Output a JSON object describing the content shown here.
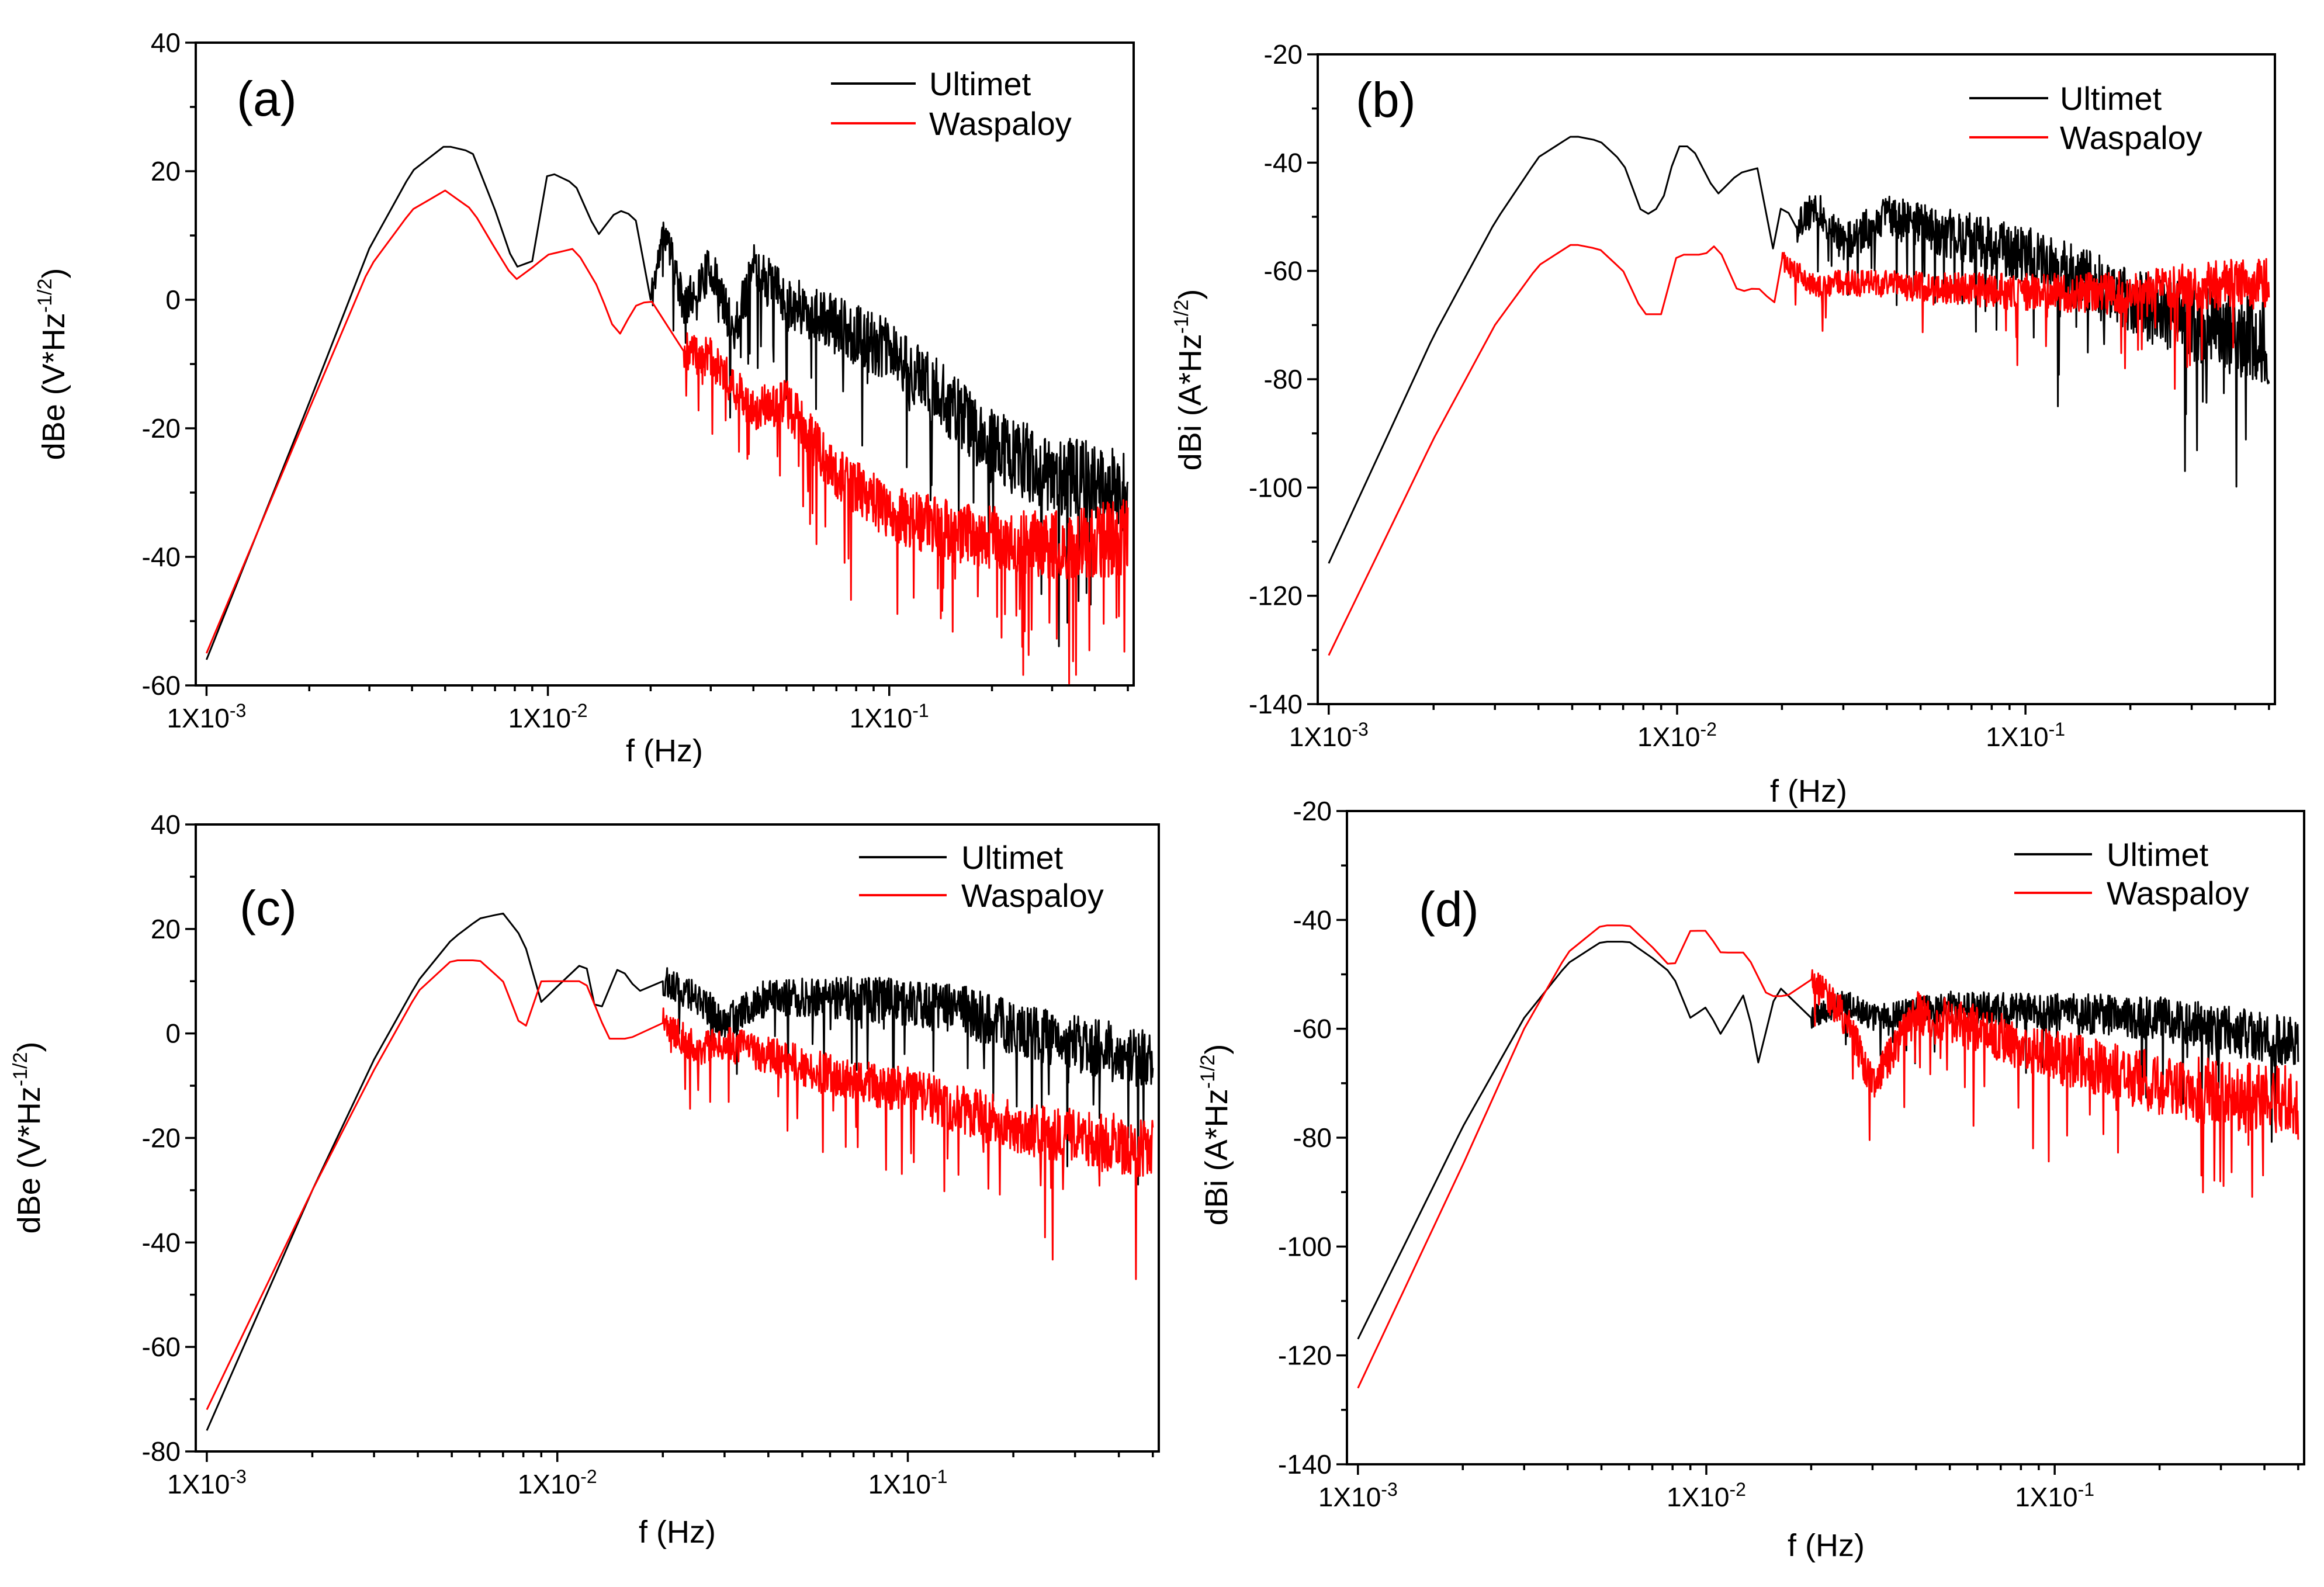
{
  "colors": {
    "ultimet": "#000000",
    "waspaloy": "#ff0000"
  },
  "chart_data": [
    {
      "type": "line",
      "panel": "(a)",
      "xlabel": "f (Hz)",
      "ylabel": "dBe (V*Hz^-1/2)",
      "xscale": "log",
      "xlim": [
        0.00093,
        0.52
      ],
      "ylim": [
        -60,
        40
      ],
      "yticks": [
        40,
        20,
        0,
        -20,
        -40,
        -60
      ],
      "xticks": [
        {
          "value": 0.001,
          "label": "1X10-3",
          "base": "1X10",
          "exp": "-3"
        },
        {
          "value": 0.01,
          "label": "1X10-2",
          "base": "1X10",
          "exp": "-2"
        },
        {
          "value": 0.1,
          "label": "1X10-1",
          "base": "1X10",
          "exp": "-1"
        }
      ],
      "legend_position": "top-right",
      "series": [
        {
          "name": "Ultimet",
          "color": "#000000",
          "x": [
            0.001,
            0.002,
            0.003,
            0.004,
            0.005,
            0.006,
            0.007,
            0.008,
            0.009,
            0.01,
            0.012,
            0.014,
            0.016,
            0.018,
            0.02,
            0.022,
            0.025,
            0.03,
            0.035,
            0.04,
            0.05,
            0.07,
            0.1,
            0.15,
            0.2,
            0.3,
            0.5
          ],
          "y": [
            -56,
            -16,
            8,
            20,
            24,
            23,
            14,
            5,
            6,
            20,
            18,
            10,
            14,
            13,
            0,
            11,
            -1,
            5,
            -5,
            5,
            0,
            -4,
            -8,
            -16,
            -23,
            -27,
            -30
          ],
          "noise_from": 0.02,
          "noise_amp": [
            3,
            7
          ],
          "noise_dips": 12,
          "noise_seed": 11
        },
        {
          "name": "Waspaloy",
          "color": "#ff0000",
          "x": [
            0.001,
            0.002,
            0.003,
            0.004,
            0.005,
            0.006,
            0.007,
            0.008,
            0.009,
            0.01,
            0.012,
            0.014,
            0.016,
            0.018,
            0.02,
            0.025,
            0.03,
            0.04,
            0.05,
            0.07,
            0.1,
            0.15,
            0.2,
            0.3,
            0.5
          ],
          "y": [
            -55,
            -17,
            5,
            14,
            17,
            14,
            8,
            3,
            5,
            7,
            8,
            2,
            -6,
            -1,
            0,
            -8,
            -9,
            -17,
            -16,
            -27,
            -33,
            -36,
            -37,
            -38,
            -37
          ],
          "noise_from": 0.025,
          "noise_amp": [
            3,
            6
          ],
          "noise_dips": 14,
          "noise_seed": 23
        }
      ]
    },
    {
      "type": "line",
      "panel": "(b)",
      "xlabel": "f (Hz)",
      "ylabel": "dBi (A*Hz^-1/2)",
      "xscale": "log",
      "xlim": [
        0.00093,
        0.52
      ],
      "ylim": [
        -140,
        -20
      ],
      "yticks": [
        -20,
        -40,
        -60,
        -80,
        -100,
        -120,
        -140
      ],
      "xticks": [
        {
          "value": 0.001,
          "label": "1X10-3",
          "base": "1X10",
          "exp": "-3"
        },
        {
          "value": 0.01,
          "label": "1X10-2",
          "base": "1X10",
          "exp": "-2"
        },
        {
          "value": 0.1,
          "label": "1X10-1",
          "base": "1X10",
          "exp": "-1"
        }
      ],
      "legend_position": "top-right",
      "series": [
        {
          "name": "Ultimet",
          "color": "#000000",
          "x": [
            0.001,
            0.002,
            0.003,
            0.004,
            0.005,
            0.006,
            0.007,
            0.008,
            0.009,
            0.01,
            0.011,
            0.013,
            0.015,
            0.017,
            0.019,
            0.02,
            0.022,
            0.025,
            0.03,
            0.04,
            0.06,
            0.1,
            0.15,
            0.2,
            0.3,
            0.5
          ],
          "y": [
            -114,
            -72,
            -51,
            -39,
            -35,
            -36,
            -40,
            -50,
            -48,
            -37,
            -37,
            -46,
            -42,
            -41,
            -57,
            -47,
            -52,
            -48,
            -55,
            -50,
            -53,
            -57,
            -62,
            -65,
            -70,
            -73
          ],
          "noise_from": 0.022,
          "noise_amp": [
            3,
            8
          ],
          "noise_dips": 12,
          "noise_seed": 37
        },
        {
          "name": "Waspaloy",
          "color": "#ff0000",
          "x": [
            0.001,
            0.002,
            0.003,
            0.004,
            0.005,
            0.006,
            0.007,
            0.008,
            0.009,
            0.01,
            0.012,
            0.013,
            0.015,
            0.017,
            0.019,
            0.02,
            0.025,
            0.03,
            0.05,
            0.1,
            0.2,
            0.3,
            0.5
          ],
          "y": [
            -131,
            -91,
            -70,
            -59,
            -55,
            -56,
            -60,
            -68,
            -68,
            -57,
            -57,
            -55,
            -64,
            -63,
            -66,
            -58,
            -63,
            -62,
            -63,
            -64,
            -64,
            -63,
            -62
          ],
          "noise_from": 0.02,
          "noise_amp": [
            2,
            5
          ],
          "noise_dips": 6,
          "noise_seed": 41
        }
      ]
    },
    {
      "type": "line",
      "panel": "(c)",
      "xlabel": "f (Hz)",
      "ylabel": "dBe (V*Hz^-1/2)",
      "xscale": "log",
      "xlim": [
        0.00093,
        0.52
      ],
      "ylim": [
        -80,
        40
      ],
      "yticks": [
        40,
        20,
        0,
        -20,
        -40,
        -60,
        -80
      ],
      "xticks": [
        {
          "value": 0.001,
          "label": "1X10-3",
          "base": "1X10",
          "exp": "-3"
        },
        {
          "value": 0.01,
          "label": "1X10-2",
          "base": "1X10",
          "exp": "-2"
        },
        {
          "value": 0.1,
          "label": "1X10-1",
          "base": "1X10",
          "exp": "-1"
        }
      ],
      "legend_position": "top-right",
      "series": [
        {
          "name": "Ultimet",
          "color": "#000000",
          "x": [
            0.001,
            0.002,
            0.003,
            0.004,
            0.005,
            0.006,
            0.007,
            0.008,
            0.009,
            0.01,
            0.012,
            0.013,
            0.015,
            0.017,
            0.02,
            0.025,
            0.03,
            0.04,
            0.06,
            0.1,
            0.15,
            0.2,
            0.3,
            0.5
          ],
          "y": [
            -76,
            -30,
            -5,
            10,
            18,
            22,
            23,
            18,
            6,
            9,
            14,
            3,
            13,
            8,
            10,
            7,
            2,
            7,
            7,
            6,
            4,
            1,
            -2,
            -5
          ],
          "noise_from": 0.02,
          "noise_amp": [
            3,
            6
          ],
          "noise_dips": 10,
          "noise_seed": 53
        },
        {
          "name": "Waspaloy",
          "color": "#ff0000",
          "x": [
            0.001,
            0.002,
            0.003,
            0.004,
            0.005,
            0.006,
            0.007,
            0.008,
            0.009,
            0.01,
            0.012,
            0.014,
            0.016,
            0.02,
            0.025,
            0.03,
            0.04,
            0.06,
            0.1,
            0.15,
            0.2,
            0.3,
            0.5
          ],
          "y": [
            -72,
            -30,
            -7,
            8,
            14,
            14,
            10,
            0,
            10,
            10,
            10,
            -1,
            -1,
            2,
            -3,
            -2,
            -4,
            -8,
            -11,
            -15,
            -18,
            -20,
            -22
          ],
          "noise_from": 0.02,
          "noise_amp": [
            3,
            6
          ],
          "noise_dips": 12,
          "noise_seed": 67
        }
      ]
    },
    {
      "type": "line",
      "panel": "(d)",
      "xlabel": "f (Hz)",
      "ylabel": "dBi (A*Hz^-1/2)",
      "xscale": "log",
      "xlim": [
        0.00093,
        0.52
      ],
      "ylim": [
        -140,
        -20
      ],
      "yticks": [
        -20,
        -40,
        -60,
        -80,
        -100,
        -120,
        -140
      ],
      "xticks": [
        {
          "value": 0.001,
          "label": "1X10-3",
          "base": "1X10",
          "exp": "-3"
        },
        {
          "value": 0.01,
          "label": "1X10-2",
          "base": "1X10",
          "exp": "-2"
        },
        {
          "value": 0.1,
          "label": "1X10-1",
          "base": "1X10",
          "exp": "-1"
        }
      ],
      "legend_position": "top-right",
      "series": [
        {
          "name": "Ultimet",
          "color": "#000000",
          "x": [
            0.001,
            0.002,
            0.003,
            0.004,
            0.005,
            0.006,
            0.007,
            0.008,
            0.009,
            0.01,
            0.011,
            0.013,
            0.014,
            0.016,
            0.02,
            0.025,
            0.03,
            0.05,
            0.1,
            0.2,
            0.3,
            0.5
          ],
          "y": [
            -117,
            -78,
            -58,
            -48,
            -44,
            -44,
            -47,
            -50,
            -58,
            -56,
            -61,
            -53,
            -67,
            -52,
            -58,
            -55,
            -58,
            -56,
            -57,
            -58,
            -60,
            -63
          ],
          "noise_from": 0.02,
          "noise_amp": [
            2,
            5
          ],
          "noise_dips": 7,
          "noise_seed": 79
        },
        {
          "name": "Waspaloy",
          "color": "#ff0000",
          "x": [
            0.001,
            0.002,
            0.003,
            0.004,
            0.005,
            0.006,
            0.007,
            0.008,
            0.009,
            0.01,
            0.011,
            0.013,
            0.015,
            0.017,
            0.02,
            0.025,
            0.03,
            0.04,
            0.06,
            0.1,
            0.2,
            0.3,
            0.5
          ],
          "y": [
            -126,
            -85,
            -60,
            -46,
            -41,
            -41,
            -45,
            -49,
            -42,
            -42,
            -46,
            -46,
            -54,
            -54,
            -51,
            -58,
            -70,
            -57,
            -60,
            -65,
            -70,
            -72,
            -74
          ],
          "noise_from": 0.02,
          "noise_amp": [
            3,
            7
          ],
          "noise_dips": 12,
          "noise_seed": 97
        }
      ]
    }
  ]
}
